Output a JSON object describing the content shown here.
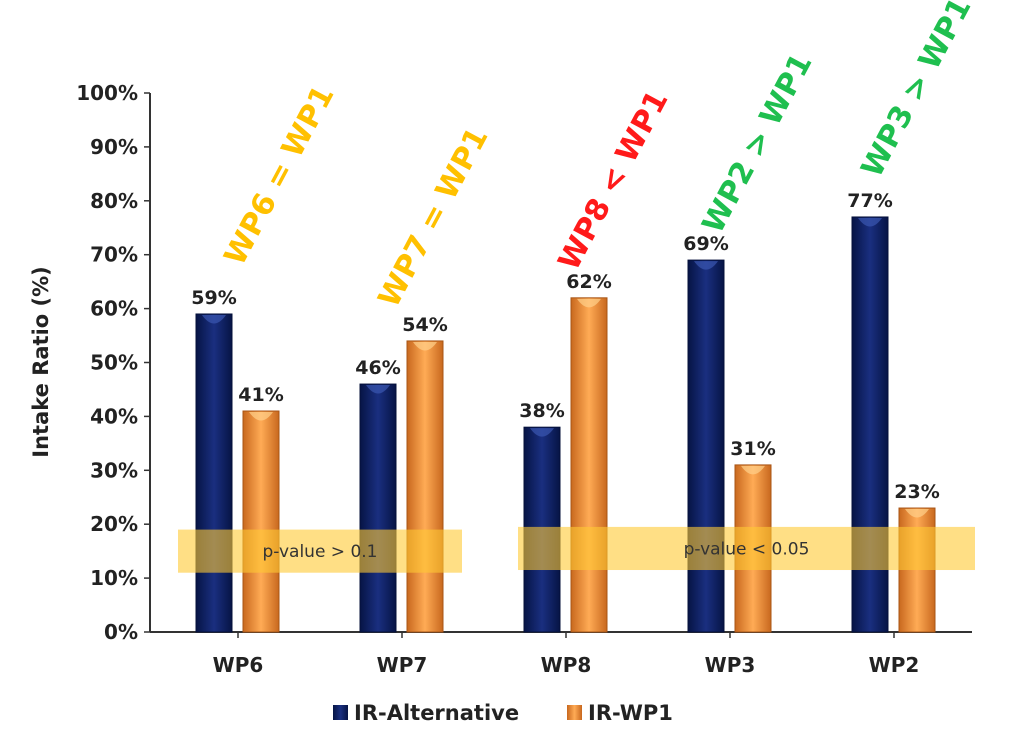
{
  "chart_data": {
    "type": "bar",
    "title": "",
    "xlabel": "",
    "ylabel": "Intake Ratio (%)",
    "ylim": [
      0,
      100
    ],
    "yticks": [
      "0%",
      "10%",
      "20%",
      "30%",
      "40%",
      "50%",
      "60%",
      "70%",
      "80%",
      "90%",
      "100%"
    ],
    "categories": [
      "WP6",
      "WP7",
      "WP8",
      "WP3",
      "WP2"
    ],
    "series": [
      {
        "name": "IR-Alternative",
        "color": "#0d1f63",
        "values": [
          59,
          46,
          38,
          69,
          77
        ],
        "labels": [
          "59%",
          "46%",
          "38%",
          "69%",
          "77%"
        ]
      },
      {
        "name": "IR-WP1",
        "color": "#f79a3e",
        "values": [
          41,
          54,
          62,
          31,
          23
        ],
        "labels": [
          "41%",
          "54%",
          "62%",
          "31%",
          "23%"
        ]
      }
    ],
    "legend_position": "bottom",
    "grid": false,
    "annotations": [
      {
        "text": "WP6 = WP1",
        "color": "#ffc000"
      },
      {
        "text": "WP7 = WP1",
        "color": "#ffc000"
      },
      {
        "text": "WP8 < WP1",
        "color": "#ff1a1a"
      },
      {
        "text": "WP2 > WP1",
        "color": "#1fbf4f"
      },
      {
        "text": "WP3 > WP1",
        "color": "#1fbf4f"
      }
    ],
    "significance_bands": [
      {
        "text": "p-value > 0.1",
        "range": [
          10,
          20
        ]
      },
      {
        "text": "p-value < 0.05",
        "range": [
          10,
          20
        ]
      }
    ]
  }
}
